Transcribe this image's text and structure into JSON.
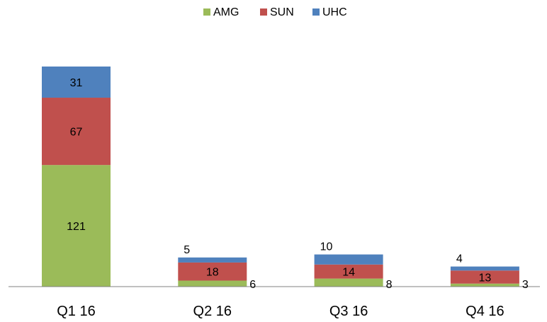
{
  "chart_data": {
    "type": "bar",
    "stacked": true,
    "categories": [
      "Q1 16",
      "Q2 16",
      "Q3 16",
      "Q4 16"
    ],
    "series": [
      {
        "name": "AMG",
        "color": "#9BBB59",
        "values": [
          121,
          6,
          8,
          3
        ]
      },
      {
        "name": "SUN",
        "color": "#C0504D",
        "values": [
          67,
          18,
          14,
          13
        ]
      },
      {
        "name": "UHC",
        "color": "#4F81BD",
        "values": [
          31,
          5,
          10,
          4
        ]
      }
    ],
    "title": "",
    "xlabel": "",
    "ylabel": "",
    "ylim": [
      0,
      219
    ],
    "grid": false,
    "legend": "top-center",
    "axis_color": "#808080"
  }
}
